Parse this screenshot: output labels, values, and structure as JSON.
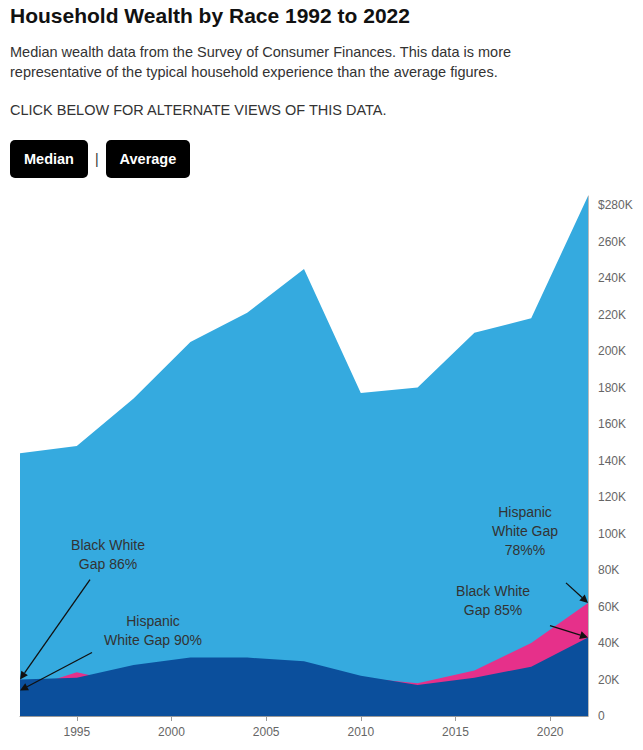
{
  "chart_data": {
    "type": "area",
    "title": "Household Wealth by Race 1992 to 2022",
    "subtitle": "Median wealth data from the Survey of Consumer Finances. This data is more representative of the typical household experience than the average figures.",
    "instruction": "CLICK BELOW FOR ALTERNATE VIEWS OF THIS DATA.",
    "buttons": [
      "Median",
      "Average"
    ],
    "button_separator": "|",
    "x": [
      1992,
      1995,
      1998,
      2001,
      2004,
      2007,
      2010,
      2013,
      2016,
      2019,
      2022
    ],
    "series": [
      {
        "color": "#35aadf",
        "values": [
          144000,
          148000,
          174000,
          205000,
          221000,
          245000,
          177000,
          180000,
          210000,
          218000,
          285000
        ]
      },
      {
        "color": "#e6308a",
        "values": [
          14000,
          24000,
          17000,
          19000,
          24000,
          28000,
          21000,
          18000,
          25000,
          40000,
          62000
        ]
      },
      {
        "color": "#0b4f9c",
        "values": [
          20000,
          21000,
          28000,
          32000,
          32000,
          30000,
          22000,
          17000,
          21000,
          27000,
          43000
        ]
      }
    ],
    "stacked": false,
    "grid": false,
    "xlim": [
      1992,
      2022
    ],
    "xticks": [
      1995,
      2000,
      2005,
      2010,
      2015,
      2020
    ],
    "ylim": [
      0,
      285000
    ],
    "yticks": [
      0,
      {
        "value": 20000,
        "label": "20K"
      },
      {
        "value": 40000,
        "label": "40K"
      },
      {
        "value": 60000,
        "label": "60K"
      },
      {
        "value": 80000,
        "label": "80K"
      },
      {
        "value": 100000,
        "label": "100K"
      },
      {
        "value": 120000,
        "label": "120K"
      },
      {
        "value": 140000,
        "label": "140K"
      },
      {
        "value": 160000,
        "label": "160K"
      },
      {
        "value": 180000,
        "label": "180K"
      },
      {
        "value": 200000,
        "label": "200K"
      },
      {
        "value": 220000,
        "label": "220K"
      },
      {
        "value": 240000,
        "label": "240K"
      },
      {
        "value": 260000,
        "label": "260K"
      },
      {
        "value": 280000,
        "label": "$280K"
      }
    ],
    "annotations": [
      {
        "text": "Black White\nGap 86%",
        "x": 1992,
        "y": 20000
      },
      {
        "text": "Hispanic\nWhite Gap 90%",
        "x": 1992,
        "y": 14000
      },
      {
        "text": "Hispanic\nWhite Gap\n78%%",
        "x": 2022,
        "y": 62000
      },
      {
        "text": "Black White\nGap 85%",
        "x": 2022,
        "y": 43000
      }
    ]
  }
}
